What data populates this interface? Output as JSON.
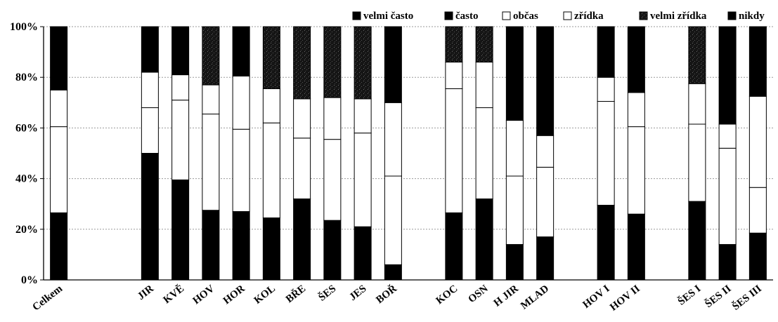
{
  "chart_data": {
    "type": "bar",
    "stacked": true,
    "percent": true,
    "ylim": [
      0,
      100
    ],
    "yticks": [
      "0%",
      "20%",
      "40%",
      "60%",
      "80%",
      "100%"
    ],
    "legend_position": "top-right",
    "categories": [
      "Celkem",
      "",
      "",
      "JIR",
      "KVĚ",
      "HOV",
      "HOR",
      "KOL",
      "BŘE",
      "ŠES",
      "JES",
      "BOŘ",
      "",
      "KOC",
      "OSN",
      "H JIR",
      "MLAD",
      "",
      "HOV I",
      "HOV II",
      "",
      "ŠES I",
      "ŠES II",
      "ŠES III"
    ],
    "series": [
      {
        "name": "velmi často",
        "color": "#000000",
        "pattern": "solid",
        "values": [
          26.5,
          null,
          null,
          50,
          39.5,
          27.5,
          27,
          24.5,
          32,
          23.5,
          21,
          6,
          null,
          26.5,
          32,
          14,
          17,
          null,
          29.5,
          26,
          null,
          31,
          14,
          18.5
        ]
      },
      {
        "name": "často",
        "color": "#000000",
        "pattern": "solid",
        "values": [
          0,
          null,
          null,
          0,
          0,
          0,
          0,
          0,
          0,
          0,
          0,
          0,
          null,
          0,
          0,
          0,
          0,
          null,
          0,
          0,
          null,
          0,
          0,
          0
        ]
      },
      {
        "name": "občas",
        "color": "#ffffff",
        "pattern": "open",
        "values": [
          34,
          null,
          null,
          18,
          31.5,
          38,
          32.5,
          37.5,
          24,
          32,
          37,
          35,
          null,
          49,
          36,
          27,
          27.5,
          null,
          41,
          34.5,
          null,
          30.5,
          38,
          18
        ]
      },
      {
        "name": "zřídka",
        "color": "#ffffff",
        "pattern": "open",
        "values": [
          14.5,
          null,
          null,
          14,
          10,
          11.5,
          21,
          13.5,
          15.5,
          16.5,
          13.5,
          29,
          null,
          10.5,
          18,
          22,
          12.5,
          null,
          9.5,
          13.5,
          null,
          16,
          9.5,
          36
        ]
      },
      {
        "name": "velmi zřídka",
        "color": "#1a1a1a",
        "pattern": "speckled",
        "values": [
          0,
          null,
          null,
          0,
          0,
          23,
          0,
          24.5,
          28.5,
          28,
          28.5,
          0,
          null,
          14,
          14,
          0,
          0,
          null,
          0,
          0,
          null,
          22.5,
          0,
          0
        ]
      },
      {
        "name": "nikdy",
        "color": "#000000",
        "pattern": "solid",
        "values": [
          25,
          null,
          null,
          18,
          19,
          0,
          19.5,
          0,
          0,
          0,
          0,
          30,
          null,
          0,
          0,
          37,
          43,
          null,
          20,
          26,
          null,
          0,
          38.5,
          27.5
        ]
      }
    ]
  }
}
